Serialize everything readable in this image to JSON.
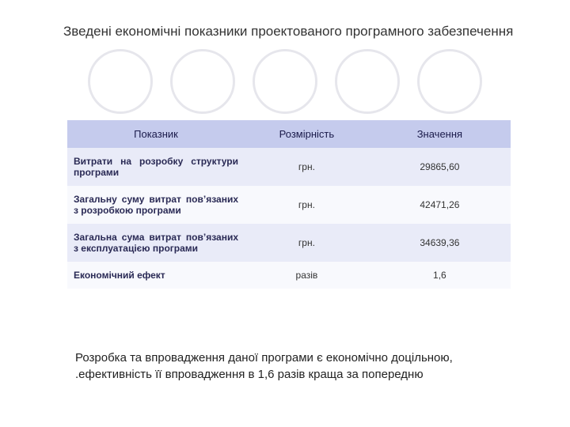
{
  "title": "Зведені економічні показники проектованого програмного забезпечення",
  "decorative": {
    "circle_count": 5,
    "circle_border_color": "#e6e6ec"
  },
  "table": {
    "columns": [
      "Показник",
      "Розмірність",
      "Значення"
    ],
    "col_widths": [
      "40%",
      "28%",
      "32%"
    ],
    "header_bg": "#c5cbed",
    "row_bg_odd": "#e9ebf8",
    "row_bg_even": "#f8f9fd",
    "rows": [
      {
        "label": "Витрати на розробку структури програми",
        "unit": "грн.",
        "value": "29865,60"
      },
      {
        "label": "Загальну суму витрат пов’язаних з розробкою програми",
        "unit": "грн.",
        "value": "42471,26"
      },
      {
        "label": "Загальна сума витрат пов’язаних з експлуатацією програми",
        "unit": "грн.",
        "value": "34639,36"
      },
      {
        "label": "Економічний ефект",
        "unit": "разів",
        "value": "1,6"
      }
    ]
  },
  "footer": {
    "line1": "Розробка та впровадження даної програми є економічно доцільною,",
    "line2": ".ефективність її впровадження в 1,6 разів краща за попередню"
  }
}
